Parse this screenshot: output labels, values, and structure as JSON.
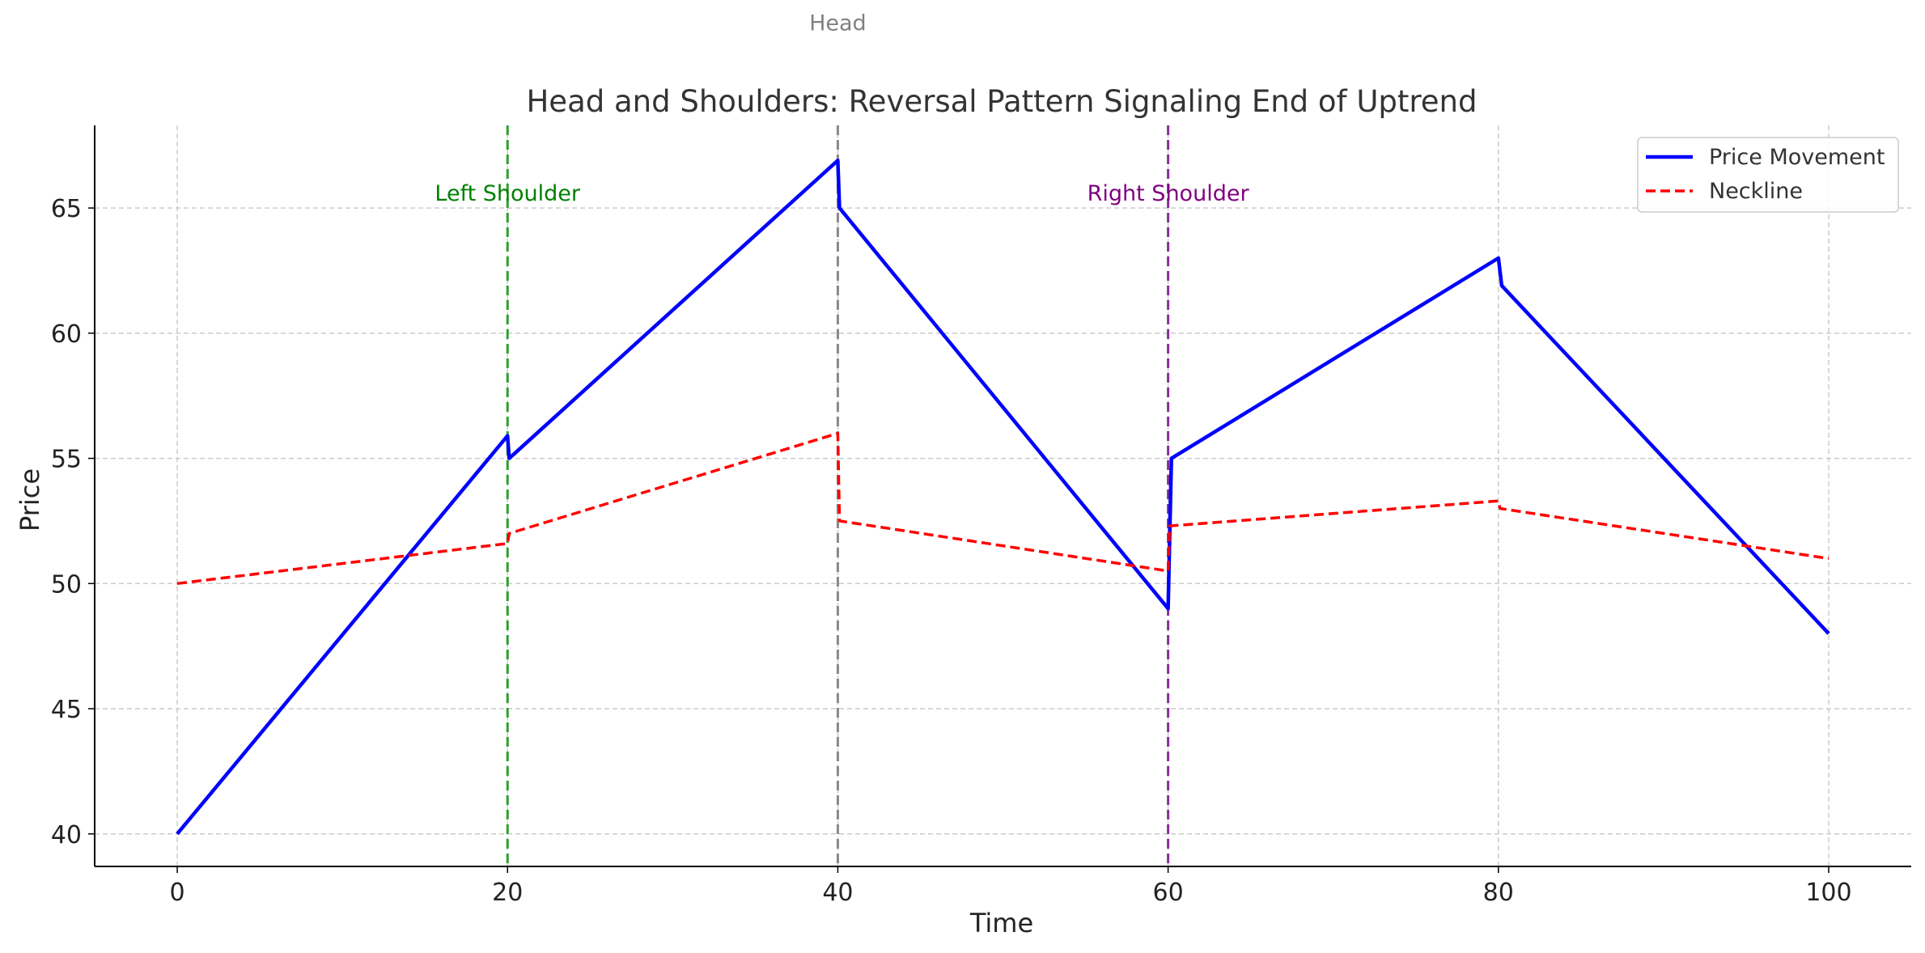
{
  "chart_data": {
    "type": "line",
    "title": "Head and Shoulders: Reversal Pattern Signaling End of Uptrend",
    "xlabel": "Time",
    "ylabel": "Price",
    "xlim": [
      -5,
      105
    ],
    "ylim": [
      38.7,
      68.3
    ],
    "xticks": [
      0,
      20,
      40,
      60,
      80,
      100
    ],
    "yticks": [
      40,
      45,
      50,
      55,
      60,
      65
    ],
    "grid": true,
    "legend_position": "upper right",
    "series": [
      {
        "name": "Price Movement",
        "color": "#0000ff",
        "style": "solid",
        "x": [
          0,
          20,
          20.1,
          40,
          40.1,
          60,
          60.2,
          80,
          80.2,
          100
        ],
        "y": [
          40,
          55.9,
          55.0,
          66.9,
          65.0,
          49.0,
          55.0,
          63.0,
          61.9,
          48.0
        ]
      },
      {
        "name": "Neckline",
        "color": "#ff0000",
        "style": "dashed",
        "x": [
          0,
          20,
          20.1,
          40,
          40.1,
          60,
          60.1,
          80,
          80.1,
          100
        ],
        "y": [
          50,
          51.6,
          52.0,
          56.0,
          52.5,
          50.5,
          52.3,
          53.3,
          53.0,
          51.0
        ]
      }
    ],
    "vlines": [
      {
        "x": 20,
        "color": "#2ca02c",
        "label": "Left Shoulder",
        "label_y": 65.3
      },
      {
        "x": 40,
        "color": "#888888",
        "label": "Head",
        "label_y": 72.1
      },
      {
        "x": 60,
        "color": "#8b2e9b",
        "label": "Right Shoulder",
        "label_y": 65.3
      }
    ],
    "annotation_colors": {
      "Left Shoulder": "#008000",
      "Head": "#808080",
      "Right Shoulder": "#800080"
    }
  }
}
